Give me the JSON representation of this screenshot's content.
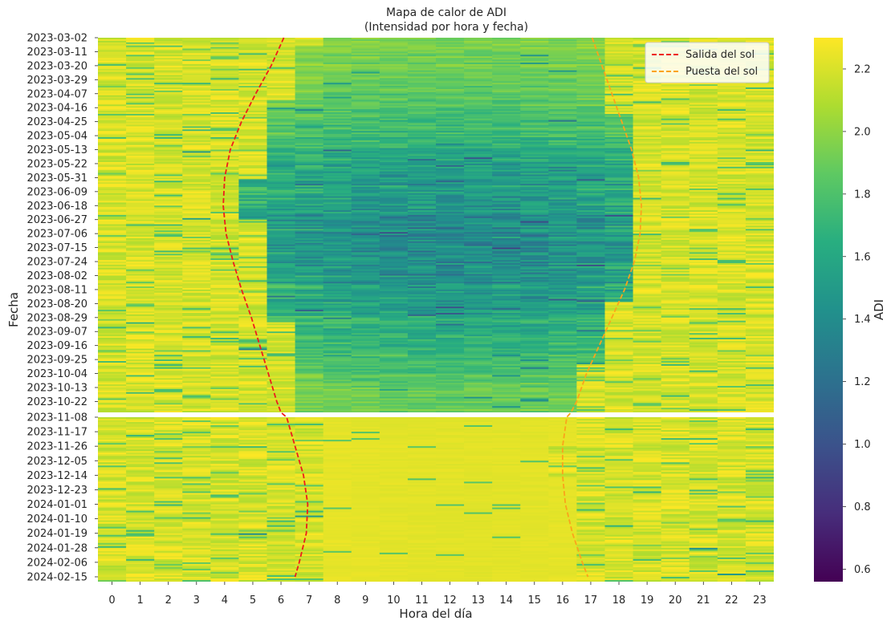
{
  "chart_data": {
    "type": "heatmap",
    "title": "Mapa de calor de ADI",
    "subtitle": "(Intensidad por hora y fecha)",
    "xlabel": "Hora del día",
    "ylabel": "Fecha",
    "colorbar_label": "ADI",
    "colormap": "viridis",
    "value_range": [
      0.56,
      2.3
    ],
    "hours": [
      0,
      1,
      2,
      3,
      4,
      5,
      6,
      7,
      8,
      9,
      10,
      11,
      12,
      13,
      14,
      15,
      16,
      17,
      18,
      19,
      20,
      21,
      22,
      23
    ],
    "hour_labels": [
      "0",
      "1",
      "2",
      "3",
      "4",
      "5",
      "6",
      "7",
      "8",
      "9",
      "10",
      "11",
      "12",
      "13",
      "14",
      "15",
      "16",
      "17",
      "18",
      "19",
      "20",
      "21",
      "22",
      "23"
    ],
    "date_labels_top": [
      "2023-03-02",
      "2023-03-11",
      "2023-03-20",
      "2023-03-29",
      "2023-04-07",
      "2023-04-16",
      "2023-04-25",
      "2023-05-04",
      "2023-05-13",
      "2023-05-22",
      "2023-05-31",
      "2023-06-09",
      "2023-06-18",
      "2023-06-27",
      "2023-07-06",
      "2023-07-15",
      "2023-07-24",
      "2023-08-02",
      "2023-08-11",
      "2023-08-20",
      "2023-08-29",
      "2023-09-07",
      "2023-09-16",
      "2023-09-25",
      "2023-10-04",
      "2023-10-13",
      "2023-10-22"
    ],
    "date_labels_bottom": [
      "2023-11-08",
      "2023-11-17",
      "2023-11-26",
      "2023-12-05",
      "2023-12-14",
      "2023-12-23",
      "2024-01-01",
      "2024-01-10",
      "2024-01-19",
      "2024-01-28",
      "2024-02-06",
      "2024-02-15"
    ],
    "colorbar_ticks": [
      0.6,
      0.8,
      1.0,
      1.2,
      1.4,
      1.6,
      1.8,
      2.0,
      2.2
    ],
    "colorbar_tick_labels": [
      "0.6",
      "0.8",
      "1.0",
      "1.2",
      "1.4",
      "1.6",
      "1.8",
      "2.0",
      "2.2"
    ],
    "series": [
      {
        "name": "Salida del sol",
        "color": "#ee1c1c",
        "style": "dashed",
        "points": [
          [
            "2023-03-02",
            6.6
          ],
          [
            "2023-03-20",
            6.15
          ],
          [
            "2023-04-07",
            5.6
          ],
          [
            "2023-04-25",
            5.1
          ],
          [
            "2023-05-13",
            4.7
          ],
          [
            "2023-05-31",
            4.5
          ],
          [
            "2023-06-18",
            4.45
          ],
          [
            "2023-07-06",
            4.55
          ],
          [
            "2023-07-24",
            4.8
          ],
          [
            "2023-08-11",
            5.1
          ],
          [
            "2023-08-29",
            5.45
          ],
          [
            "2023-09-16",
            5.75
          ],
          [
            "2023-10-04",
            6.05
          ],
          [
            "2023-10-22",
            6.35
          ],
          [
            "2023-10-29",
            6.5
          ],
          [
            "2023-11-08",
            6.7
          ],
          [
            "2023-11-26",
            7.0
          ],
          [
            "2023-12-14",
            7.3
          ],
          [
            "2024-01-01",
            7.45
          ],
          [
            "2024-01-19",
            7.4
          ],
          [
            "2024-02-06",
            7.15
          ],
          [
            "2024-02-15",
            7.0
          ]
        ]
      },
      {
        "name": "Puesta del sol",
        "color": "#fba31b",
        "style": "dashed",
        "points": [
          [
            "2023-03-02",
            17.55
          ],
          [
            "2023-03-20",
            17.9
          ],
          [
            "2023-04-07",
            18.25
          ],
          [
            "2023-04-25",
            18.6
          ],
          [
            "2023-05-13",
            18.95
          ],
          [
            "2023-05-31",
            19.2
          ],
          [
            "2023-06-18",
            19.3
          ],
          [
            "2023-07-06",
            19.25
          ],
          [
            "2023-07-24",
            19.05
          ],
          [
            "2023-08-11",
            18.7
          ],
          [
            "2023-08-29",
            18.25
          ],
          [
            "2023-09-16",
            17.8
          ],
          [
            "2023-10-04",
            17.35
          ],
          [
            "2023-10-22",
            17.0
          ],
          [
            "2023-10-29",
            16.8
          ],
          [
            "2023-11-08",
            16.65
          ],
          [
            "2023-11-26",
            16.5
          ],
          [
            "2023-12-14",
            16.5
          ],
          [
            "2024-01-01",
            16.6
          ],
          [
            "2024-01-19",
            16.85
          ],
          [
            "2024-02-06",
            17.2
          ],
          [
            "2024-02-15",
            17.4
          ]
        ]
      }
    ],
    "legend": {
      "position": "top-right",
      "entries": [
        "Salida del sol",
        "Puesta del sol"
      ]
    }
  }
}
